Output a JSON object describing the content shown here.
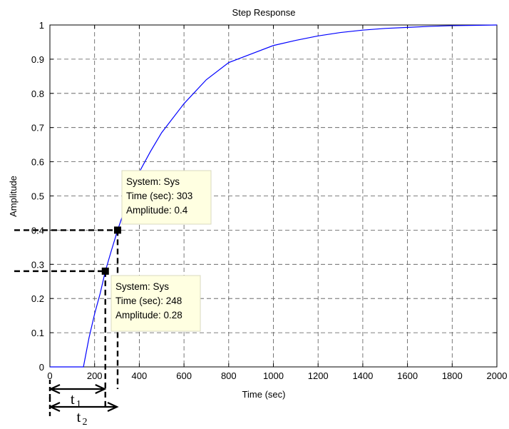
{
  "chart_data": {
    "type": "line",
    "title": "Step Response",
    "xlabel": "Time (sec)",
    "ylabel": "Amplitude",
    "xlim": [
      0,
      2000
    ],
    "ylim": [
      0,
      1
    ],
    "xticks": [
      0,
      200,
      400,
      600,
      800,
      1000,
      1200,
      1400,
      1600,
      1800,
      2000
    ],
    "xtick_labels": [
      "0",
      "200",
      "400",
      "600",
      "800",
      "1000",
      "1200",
      "1400",
      "1600",
      "1800",
      "2000"
    ],
    "yticks": [
      0,
      0.1,
      0.2,
      0.3,
      0.4,
      0.5,
      0.6,
      0.7,
      0.8,
      0.9,
      1
    ],
    "ytick_labels": [
      "0",
      "0.1",
      "0.2",
      "0.3",
      "0.4",
      "0.5",
      "0.6",
      "0.7",
      "0.8",
      "0.9",
      "1"
    ],
    "grid": true,
    "line_color": "#0000ff",
    "series": [
      {
        "x": [
          0,
          100,
          150,
          175,
          200,
          225,
          248,
          275,
          303,
          350,
          400,
          450,
          500,
          600,
          700,
          800,
          900,
          1000,
          1100,
          1200,
          1300,
          1400,
          1500,
          1600,
          1700,
          1800,
          1900,
          2000
        ],
        "values": [
          0,
          0,
          0,
          0.085,
          0.155,
          0.215,
          0.28,
          0.34,
          0.4,
          0.49,
          0.57,
          0.63,
          0.685,
          0.77,
          0.84,
          0.89,
          0.915,
          0.94,
          0.955,
          0.968,
          0.978,
          0.985,
          0.99,
          0.993,
          0.996,
          0.998,
          0.999,
          1.0
        ]
      }
    ],
    "datatips": [
      {
        "x": 303,
        "y": 0.4,
        "lines": [
          "System: Sys",
          "Time (sec): 303",
          "Amplitude: 0.4"
        ]
      },
      {
        "x": 248,
        "y": 0.28,
        "lines": [
          "System: Sys",
          "Time (sec): 248",
          "Amplitude: 0.28"
        ]
      }
    ],
    "annotations": [
      {
        "label": "t",
        "subscript": "1",
        "to_x": 248
      },
      {
        "label": "t",
        "subscript": "2",
        "to_x": 303
      }
    ]
  }
}
